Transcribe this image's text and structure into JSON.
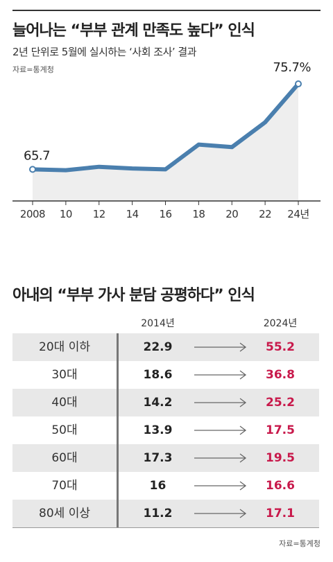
{
  "header": {
    "title": "늘어나는 “부부 관계 만족도 높다” 인식",
    "subtitle": "2년 단위로 5월에 실시하는 ‘사회 조사’ 결과",
    "source": "자료=통계청"
  },
  "chart_data": [
    {
      "type": "line",
      "title": "늘어나는 “부부 관계 만족도 높다” 인식",
      "subtitle": "2년 단위로 5월에 실시하는 ‘사회 조사’ 결과",
      "x": [
        "2008",
        "10",
        "12",
        "14",
        "16",
        "18",
        "20",
        "22",
        "24년"
      ],
      "series": [
        {
          "values": [
            65.7,
            65.6,
            66.0,
            65.8,
            65.7,
            68.6,
            68.3,
            71.2,
            75.7
          ]
        }
      ],
      "labels": {
        "first": "65.7",
        "last": "75.7%"
      },
      "ylim": [
        62,
        77
      ],
      "grid": false,
      "color": "#4a7fae",
      "fill": "#eeeeee"
    },
    {
      "type": "table",
      "title": "아내의 “부부 가사 분담 공평하다” 인식",
      "columns": [
        "2014년",
        "2024년"
      ],
      "rows": [
        {
          "age": "20대 이하",
          "v2014": "22.9",
          "v2024": "55.2"
        },
        {
          "age": "30대",
          "v2014": "18.6",
          "v2024": "36.8"
        },
        {
          "age": "40대",
          "v2014": "14.2",
          "v2024": "25.2"
        },
        {
          "age": "50대",
          "v2014": "13.9",
          "v2024": "17.5"
        },
        {
          "age": "60대",
          "v2014": "17.3",
          "v2024": "19.5"
        },
        {
          "age": "70대",
          "v2014": "16",
          "v2024": "16.6"
        },
        {
          "age": "80세 이상",
          "v2014": "11.2",
          "v2024": "17.1"
        }
      ],
      "highlight_color": "#c8194b"
    }
  ],
  "footer": {
    "source": "자료=통계청"
  }
}
